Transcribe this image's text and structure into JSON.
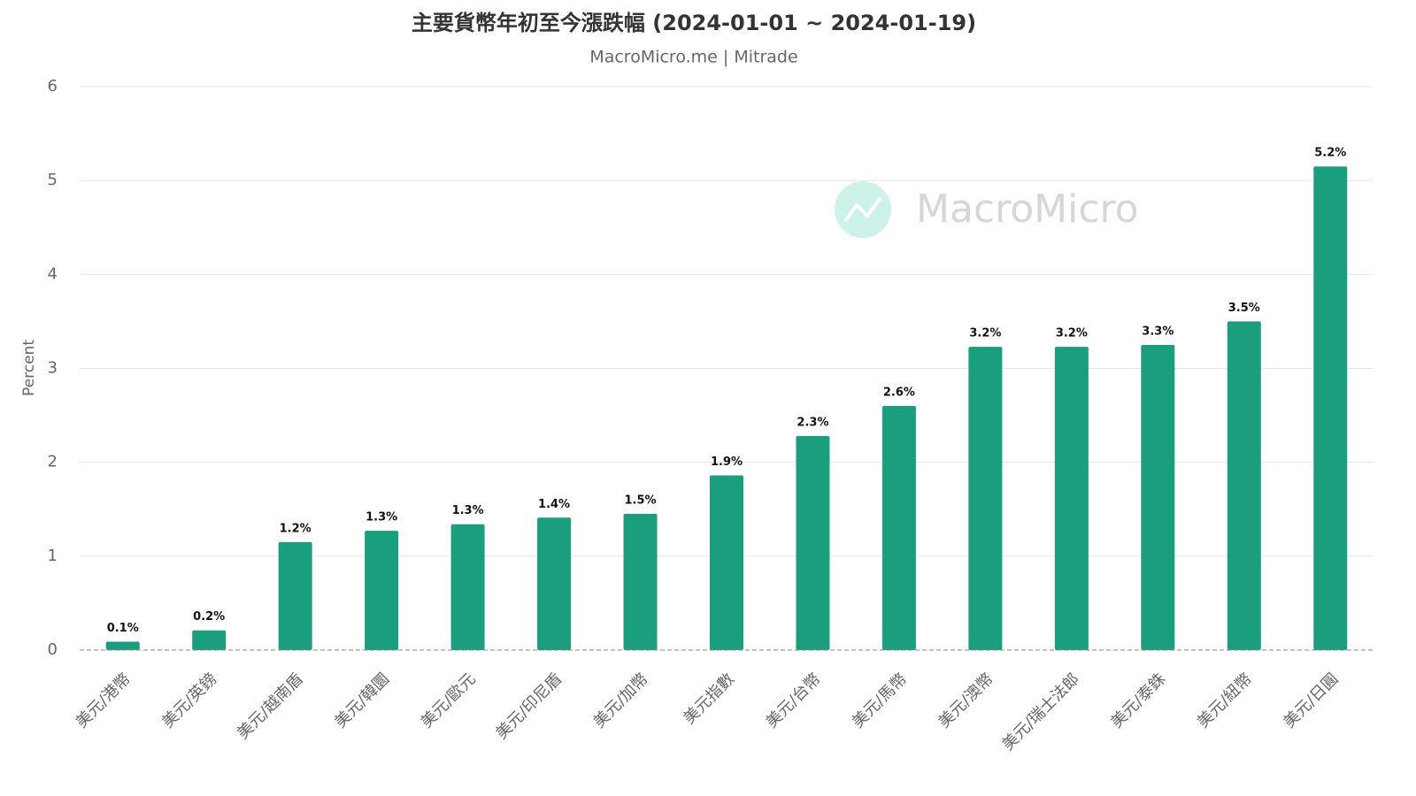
{
  "chart_data": {
    "type": "bar",
    "title": "主要貨幣年初至今漲跌幅 (2024-01-01 ~ 2024-01-19)",
    "subtitle": "MacroMicro.me | Mitrade",
    "watermark": "MacroMicro",
    "y_label": "Percent",
    "categories": [
      "美元/港幣",
      "美元/英鎊",
      "美元/越南盾",
      "美元/韓圜",
      "美元/歐元",
      "美元/印尼盾",
      "美元/加幣",
      "美元指數",
      "美元/台幣",
      "美元/馬幣",
      "美元/澳幣",
      "美元/瑞士法郎",
      "美元/泰銖",
      "美元/紐幣",
      "美元/日圓"
    ],
    "values": [
      0.09,
      0.21,
      1.15,
      1.27,
      1.34,
      1.41,
      1.45,
      1.86,
      2.28,
      2.6,
      3.23,
      3.23,
      3.25,
      3.5,
      5.15
    ],
    "value_labels": [
      "0.1%",
      "0.2%",
      "1.2%",
      "1.3%",
      "1.3%",
      "1.4%",
      "1.5%",
      "1.9%",
      "2.3%",
      "2.6%",
      "3.2%",
      "3.2%",
      "3.3%",
      "3.5%",
      "5.2%"
    ],
    "color": "#1a9e7e",
    "ylim": [
      0,
      6
    ],
    "yticks": [
      0,
      1,
      2,
      3,
      4,
      5,
      6
    ],
    "grid": true
  }
}
